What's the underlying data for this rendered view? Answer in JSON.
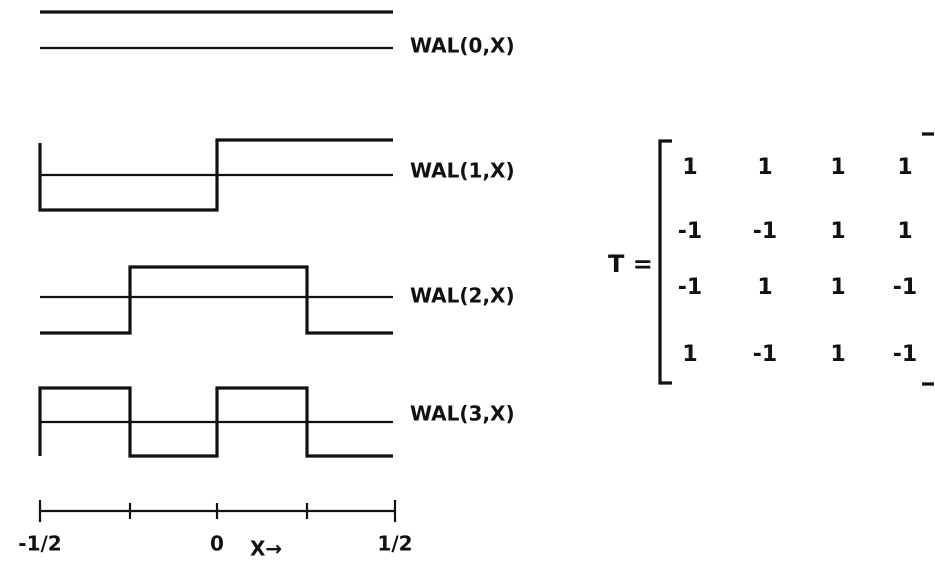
{
  "waveforms": {
    "labels": [
      "WAL(0,X)",
      "WAL(1,X)",
      "WAL(2,X)",
      "WAL(3,X)"
    ]
  },
  "axis": {
    "tick_labels": [
      "-1/2",
      "0",
      "1/2"
    ],
    "label": "X→"
  },
  "matrix": {
    "name": "T =",
    "rows": [
      [
        "1",
        "1",
        "1",
        "1"
      ],
      [
        "-1",
        "-1",
        "1",
        "1"
      ],
      [
        "-1",
        "1",
        "1",
        "-1"
      ],
      [
        "1",
        "-1",
        "1",
        "-1"
      ]
    ]
  }
}
